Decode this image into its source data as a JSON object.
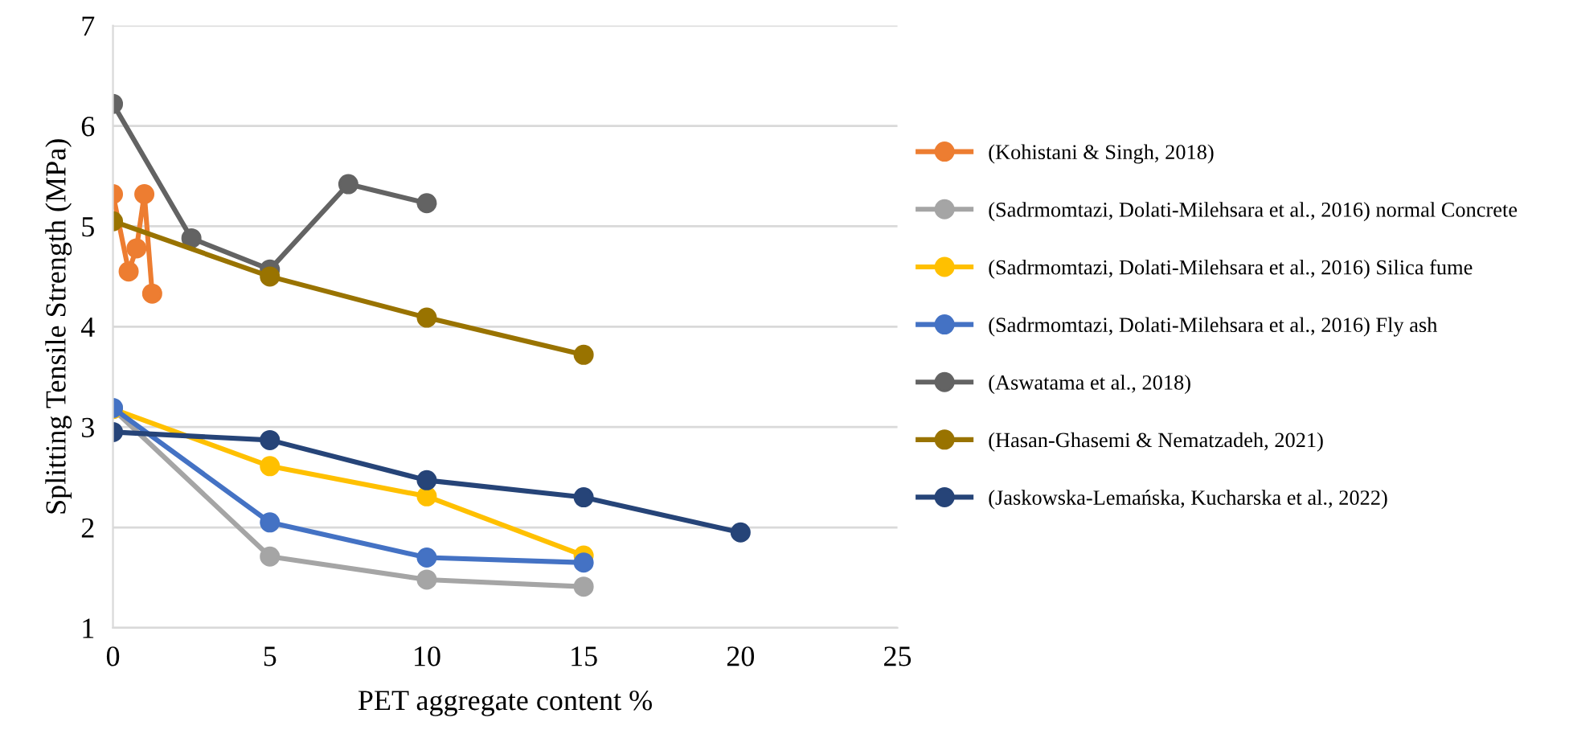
{
  "chart_data": {
    "type": "line",
    "xlabel": "PET aggregate content %",
    "ylabel": "Splitting Tensile Strength (MPa)",
    "xlim": [
      0,
      25
    ],
    "xticks": [
      0,
      5,
      10,
      15,
      20,
      25
    ],
    "ylim": [
      1,
      7
    ],
    "yticks": [
      1,
      2,
      3,
      4,
      5,
      6,
      7
    ],
    "grid": "y",
    "legend": "right",
    "marker": "circle",
    "line_style": "solid",
    "series": [
      {
        "name": "(Kohistani & Singh, 2018)",
        "color": "#ed7d31",
        "x": [
          0,
          0.5,
          0.75,
          1,
          1.25
        ],
        "values": [
          5.32,
          4.55,
          4.78,
          5.32,
          4.33
        ]
      },
      {
        "name": "(Sadrmomtazi, Dolati-Milehsara et al., 2016) normal Concrete",
        "color": "#a5a5a5",
        "x": [
          0,
          5,
          10,
          15
        ],
        "values": [
          3.18,
          1.71,
          1.48,
          1.41
        ]
      },
      {
        "name": "(Sadrmomtazi, Dolati-Milehsara et al., 2016) Silica fume",
        "color": "#ffc000",
        "x": [
          0,
          5,
          10,
          15
        ],
        "values": [
          3.18,
          2.61,
          2.31,
          1.72
        ]
      },
      {
        "name": "(Sadrmomtazi, Dolati-Milehsara et al., 2016) Fly ash",
        "color": "#4472c4",
        "x": [
          0,
          5,
          10,
          15
        ],
        "values": [
          3.19,
          2.05,
          1.7,
          1.65
        ]
      },
      {
        "name": "(Aswatama et al., 2018)",
        "color": "#636363",
        "x": [
          0,
          2.5,
          5,
          7.5,
          10
        ],
        "values": [
          6.22,
          4.88,
          4.57,
          5.42,
          5.23
        ]
      },
      {
        "name": "(Hasan-Ghasemi & Nematzadeh, 2021)",
        "color": "#997300",
        "x": [
          0,
          5,
          10,
          15
        ],
        "values": [
          5.05,
          4.5,
          4.09,
          3.72
        ]
      },
      {
        "name": "(Jaskowska-Lemańska, Kucharska et al., 2022)",
        "color": "#264478",
        "x": [
          0,
          5,
          10,
          15,
          20
        ],
        "values": [
          2.95,
          2.87,
          2.47,
          2.3,
          1.95
        ]
      }
    ]
  }
}
